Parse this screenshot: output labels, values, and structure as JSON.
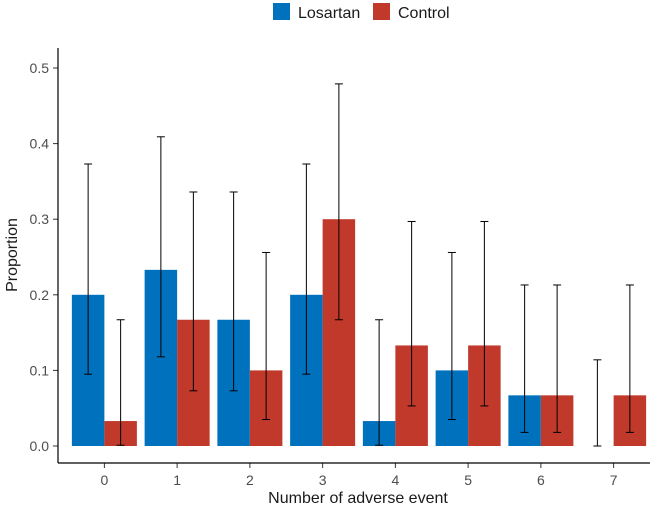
{
  "chart_data": {
    "type": "bar",
    "xlabel": "Number of adverse event",
    "ylabel": "Proportion",
    "categories": [
      "0",
      "1",
      "2",
      "3",
      "4",
      "5",
      "6",
      "7"
    ],
    "ylim": [
      0,
      0.5
    ],
    "yticks": [
      "0.0",
      "0.1",
      "0.2",
      "0.3",
      "0.4",
      "0.5"
    ],
    "grid": false,
    "legend_position": "top",
    "series": [
      {
        "name": "Losartan",
        "color": "#0072bd",
        "values": [
          0.2,
          0.233,
          0.167,
          0.2,
          0.033,
          0.1,
          0.067,
          0.0
        ],
        "ci_low": [
          0.095,
          0.118,
          0.073,
          0.095,
          0.001,
          0.035,
          0.018,
          0.0
        ],
        "ci_high": [
          0.373,
          0.409,
          0.336,
          0.373,
          0.167,
          0.256,
          0.213,
          0.114
        ]
      },
      {
        "name": "Control",
        "color": "#c0392b",
        "values": [
          0.033,
          0.167,
          0.1,
          0.3,
          0.133,
          0.133,
          0.067,
          0.067
        ],
        "ci_low": [
          0.001,
          0.073,
          0.035,
          0.167,
          0.053,
          0.053,
          0.018,
          0.018
        ],
        "ci_high": [
          0.167,
          0.336,
          0.256,
          0.479,
          0.297,
          0.297,
          0.213,
          0.213
        ]
      }
    ]
  }
}
